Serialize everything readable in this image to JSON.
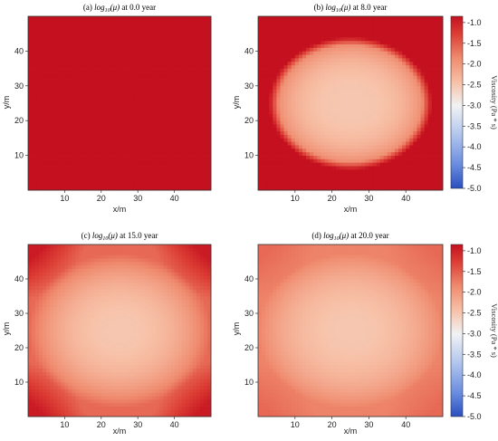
{
  "chart_data": [
    {
      "type": "heatmap",
      "title_prefix": "(a) ",
      "title_sub": "10",
      "title_suffix": " at 0.0 year",
      "xlabel": "x/m",
      "ylabel": "y/m",
      "xlim": [
        0,
        50
      ],
      "ylim": [
        0,
        50
      ],
      "xticks": [
        10,
        20,
        30,
        40
      ],
      "yticks": [
        10,
        20,
        30,
        40
      ],
      "field": {
        "center": [
          25,
          25
        ],
        "center_value": -0.85,
        "edge_value": -0.85,
        "corner_value": -0.85,
        "plateau_radius": 0.0
      }
    },
    {
      "type": "heatmap",
      "title_prefix": "(b) ",
      "title_sub": "10",
      "title_suffix": " at 8.0 year",
      "xlabel": "x/m",
      "ylabel": "y/m",
      "xlim": [
        0,
        50
      ],
      "ylim": [
        0,
        50
      ],
      "xticks": [
        10,
        20,
        30,
        40
      ],
      "yticks": [
        10,
        20,
        30,
        40
      ],
      "field": {
        "center": [
          25,
          25
        ],
        "center_value": -2.5,
        "outer_value": -0.85,
        "radius_x": 22,
        "radius_y": 19
      }
    },
    {
      "type": "heatmap",
      "title_prefix": "(c) ",
      "title_sub": "10",
      "title_suffix": " at 15.0 year",
      "xlabel": "x/m",
      "ylabel": "y/m",
      "xlim": [
        0,
        50
      ],
      "ylim": [
        0,
        50
      ],
      "xticks": [
        10,
        20,
        30,
        40
      ],
      "yticks": [
        10,
        20,
        30,
        40
      ],
      "field": {
        "center": [
          25,
          25
        ],
        "center_value": -2.5,
        "edge_value": -1.6,
        "corner_value": -0.95
      }
    },
    {
      "type": "heatmap",
      "title_prefix": "(d) ",
      "title_sub": "10",
      "title_suffix": " at 20.0 year",
      "xlabel": "x/m",
      "ylabel": "y/m",
      "xlim": [
        0,
        50
      ],
      "ylim": [
        0,
        50
      ],
      "xticks": [
        10,
        20,
        30,
        40
      ],
      "yticks": [
        10,
        20,
        30,
        40
      ],
      "field": {
        "center": [
          25,
          25
        ],
        "center_value": -2.5,
        "edge_value": -1.8,
        "corner_value": -1.6
      }
    }
  ],
  "colorbar": {
    "label": "Viscosity (Pa * s)",
    "range": [
      -5.0,
      -0.85
    ],
    "ticks": [
      "-1.0",
      "-1.5",
      "-2.0",
      "-2.5",
      "-3.0",
      "-3.5",
      "-4.0",
      "-4.5",
      "-5.0"
    ],
    "colormap": [
      "#2a4fbf",
      "#6b8de0",
      "#b4c8ee",
      "#f1f2f4",
      "#f7c0a6",
      "#ef8a6e",
      "#dc3d34",
      "#c4101f"
    ]
  }
}
